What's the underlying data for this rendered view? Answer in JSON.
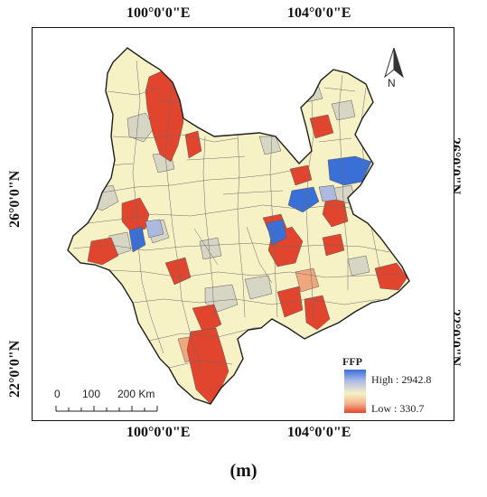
{
  "figure": {
    "caption": "(m)",
    "coordinates": {
      "top_left": "100°0'0\"E",
      "top_right": "104°0'0\"E",
      "bottom_left": "100°0'0\"E",
      "bottom_right": "104°0'0\"E",
      "left_upper": "26°0'0\"N",
      "left_lower": "22°0'0\"N",
      "right_upper": "26°0'0\"N",
      "right_lower": "22°0'0\"N"
    },
    "north_arrow": {
      "icon": "north-arrow-icon",
      "label": "N"
    },
    "legend": {
      "title": "FFP",
      "high_label": "High : 2942.8",
      "low_label": "Low : 330.7",
      "high_color": "#3b6fd8",
      "low_color": "#e2452e"
    },
    "scale_bar": {
      "labels": [
        "0",
        "100",
        "200 Km"
      ]
    },
    "colors": {
      "base": "#f7f1c6",
      "pale": "#ece7c5",
      "grey": "#d7d5c4",
      "red": "#e2452e",
      "orange": "#f1a77d",
      "blue": "#3b6fd8",
      "light_blue": "#aeb9df",
      "border": "#3b3b3b"
    }
  }
}
